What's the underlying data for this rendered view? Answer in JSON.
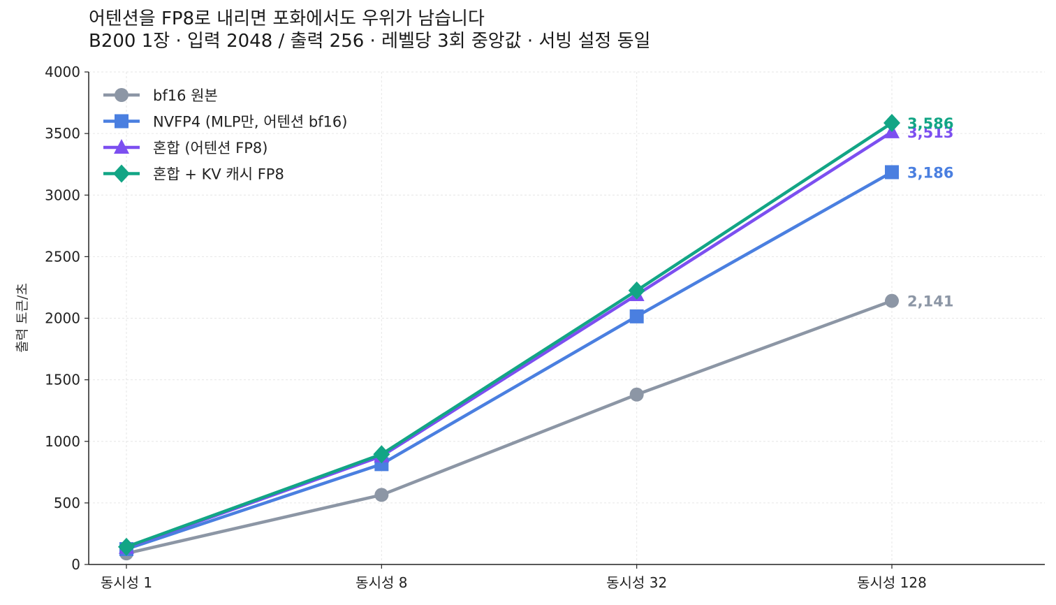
{
  "chart_data": {
    "type": "line",
    "title": "어텐션을 FP8로 내리면 포화에서도 우위가 남습니다",
    "subtitle": "B200 1장 · 입력 2048 / 출력 256 · 레벨당 3회 중앙값 · 서빙 설정 동일",
    "xlabel": "",
    "ylabel": "출력 토큰/초",
    "categories": [
      "동시성 1",
      "동시성 8",
      "동시성 32",
      "동시성 128"
    ],
    "ylim": [
      0,
      4000
    ],
    "yticks": [
      0,
      500,
      1000,
      1500,
      2000,
      2500,
      3000,
      3500,
      4000
    ],
    "grid": true,
    "legend_position": "top-left",
    "series": [
      {
        "name": "bf16 원본",
        "values": [
          90,
          565,
          1380,
          2141
        ],
        "color": "#8c96a5",
        "marker": "circle",
        "end_label": "2,141"
      },
      {
        "name": "NVFP4 (MLP만, 어텐션 bf16)",
        "values": [
          125,
          815,
          2015,
          3186
        ],
        "color": "#4a7fe0",
        "marker": "square",
        "end_label": "3,186"
      },
      {
        "name": "혼합 (어텐션 FP8)",
        "values": [
          138,
          880,
          2190,
          3513
        ],
        "color": "#7c4ff0",
        "marker": "triangle",
        "end_label": "3,513"
      },
      {
        "name": "혼합 + KV 캐시 FP8",
        "values": [
          143,
          895,
          2225,
          3586
        ],
        "color": "#12a585",
        "marker": "diamond",
        "end_label": "3,586"
      }
    ]
  }
}
